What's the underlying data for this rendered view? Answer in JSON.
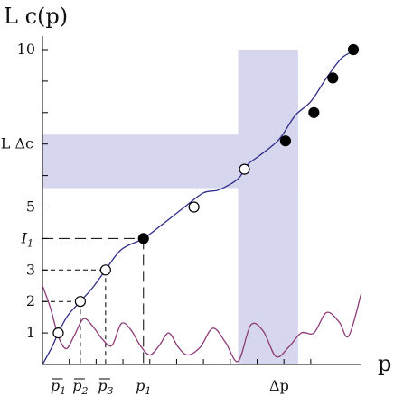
{
  "chart_data": {
    "type": "line",
    "ylabel": "L c(p)",
    "xlabel": "p",
    "xlim": [
      0,
      10.5
    ],
    "ylim": [
      0,
      10.5
    ],
    "y_ticks": [
      {
        "value": 1,
        "label": "1"
      },
      {
        "value": 2,
        "label": "2"
      },
      {
        "value": 3,
        "label": "3"
      },
      {
        "value": 5,
        "label": "5"
      },
      {
        "value": 10,
        "label": "10"
      }
    ],
    "y_annotations": [
      {
        "value": 4,
        "label": "I",
        "sub": "1"
      },
      {
        "value": 7,
        "label": "L Δc",
        "sub": ""
      }
    ],
    "x_annotations": [
      {
        "value": 0.5,
        "label": "p",
        "sub": "1",
        "bar": true
      },
      {
        "value": 1.2,
        "label": "p",
        "sub": "2",
        "bar": true
      },
      {
        "value": 2.0,
        "label": "p",
        "sub": "3",
        "bar": true
      },
      {
        "value": 3.2,
        "label": "p",
        "sub": "1",
        "bar": false
      },
      {
        "value": 7.5,
        "label": "Δp",
        "sub": "",
        "bar": false
      }
    ],
    "shaded_bands": [
      {
        "axis": "x",
        "range": [
          6.2,
          8.1
        ]
      },
      {
        "axis": "y",
        "range": [
          5.6,
          7.3
        ]
      }
    ],
    "series": [
      {
        "color": "#2e2e8a",
        "x": [
          0,
          0.3,
          0.5,
          0.8,
          1.2,
          1.6,
          2.0,
          2.5,
          3.2,
          3.8,
          4.5,
          5.1,
          5.6,
          6.2,
          6.5,
          6.9,
          7.5,
          8.0,
          8.5,
          9.0,
          9.5,
          10.0
        ],
        "y": [
          0,
          0.55,
          1.0,
          1.55,
          2.0,
          2.45,
          3.0,
          3.65,
          4.0,
          4.45,
          5.0,
          5.45,
          5.55,
          5.9,
          6.35,
          6.65,
          7.15,
          7.9,
          8.35,
          9.1,
          9.75,
          10.0
        ]
      },
      {
        "color": "#8c3a78",
        "x": [
          0,
          0.25,
          0.5,
          0.75,
          1.0,
          1.3,
          1.6,
          1.9,
          2.2,
          2.5,
          2.8,
          3.1,
          3.4,
          3.7,
          4.0,
          4.3,
          4.6,
          5.0,
          5.4,
          5.8,
          6.2,
          6.6,
          7.0,
          7.4,
          7.8,
          8.2,
          8.6,
          9.0,
          9.4,
          9.7,
          10.1
        ],
        "y": [
          2.5,
          1.8,
          0.9,
          0.5,
          0.9,
          1.45,
          1.2,
          0.8,
          0.6,
          1.3,
          1.1,
          0.6,
          0.3,
          0.6,
          1.0,
          0.55,
          0.3,
          0.55,
          1.15,
          0.7,
          0.1,
          1.25,
          1.05,
          0.25,
          0.55,
          1.0,
          1.0,
          1.65,
          1.35,
          0.9,
          2.25
        ]
      }
    ],
    "points": [
      {
        "x": 0.5,
        "y": 1.0,
        "filled": false
      },
      {
        "x": 1.2,
        "y": 2.0,
        "filled": false
      },
      {
        "x": 2.0,
        "y": 3.0,
        "filled": false
      },
      {
        "x": 3.2,
        "y": 4.0,
        "filled": true
      },
      {
        "x": 4.8,
        "y": 5.0,
        "filled": false
      },
      {
        "x": 6.4,
        "y": 6.2,
        "filled": false
      },
      {
        "x": 7.7,
        "y": 7.1,
        "filled": true
      },
      {
        "x": 8.6,
        "y": 8.0,
        "filled": true
      },
      {
        "x": 9.2,
        "y": 9.1,
        "filled": true
      },
      {
        "x": 9.85,
        "y": 10.0,
        "filled": true
      }
    ],
    "dashed_guides": [
      {
        "x": 1.2,
        "y": 2.0
      },
      {
        "x": 2.0,
        "y": 3.0
      },
      {
        "x": 3.2,
        "y": 4.0
      }
    ],
    "grid": false,
    "legend": "none"
  }
}
